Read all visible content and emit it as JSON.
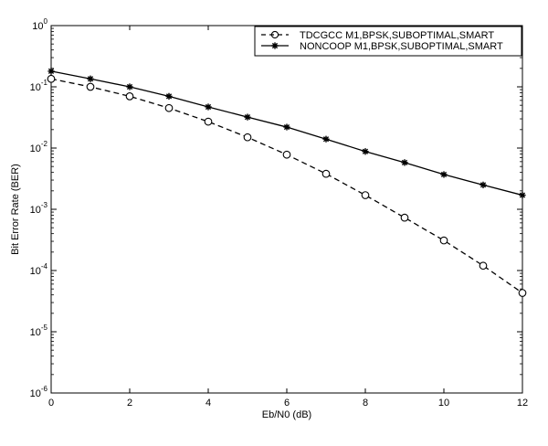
{
  "chart_data": {
    "type": "line",
    "title": "",
    "xlabel": "Eb/N0 (dB)",
    "ylabel": "Bit Error Rate (BER)",
    "xlim": [
      0,
      12
    ],
    "ylim": [
      1e-06,
      1
    ],
    "yscale": "log",
    "grid": false,
    "legend_position": "top-right",
    "x_ticks": [
      "0",
      "2",
      "4",
      "6",
      "8",
      "10",
      "12"
    ],
    "y_ticks": [
      {
        "base": "10",
        "exp": "0"
      },
      {
        "base": "10",
        "exp": "-1"
      },
      {
        "base": "10",
        "exp": "-2"
      },
      {
        "base": "10",
        "exp": "-3"
      },
      {
        "base": "10",
        "exp": "-4"
      },
      {
        "base": "10",
        "exp": "-5"
      },
      {
        "base": "10",
        "exp": "-6"
      }
    ],
    "x": [
      0,
      1,
      2,
      3,
      4,
      5,
      6,
      7,
      8,
      9,
      10,
      11,
      12
    ],
    "series": [
      {
        "name": "TDCGCC M1,BPSK,SUBOPTIMAL,SMART",
        "style": "dashed",
        "marker": "circle",
        "color": "#000000",
        "values": [
          0.135,
          0.1,
          0.07,
          0.045,
          0.027,
          0.015,
          0.0078,
          0.0038,
          0.0017,
          0.00073,
          0.00031,
          0.00012,
          4.3e-05
        ]
      },
      {
        "name": "NONCOOP M1,BPSK,SUBOPTIMAL,SMART",
        "style": "solid",
        "marker": "star",
        "color": "#000000",
        "values": [
          0.18,
          0.135,
          0.1,
          0.07,
          0.047,
          0.032,
          0.022,
          0.014,
          0.0088,
          0.0058,
          0.0037,
          0.0025,
          0.0017
        ]
      }
    ]
  }
}
